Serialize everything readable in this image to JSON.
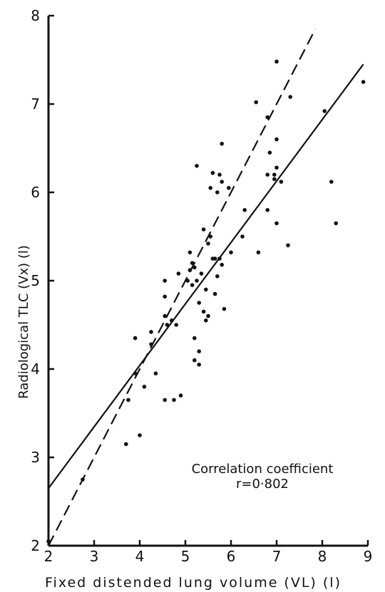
{
  "chart_data": {
    "type": "scatter",
    "xlabel": "Fixed distended lung volume (VL) (l)",
    "ylabel": "Radiological TLC (Vx) (l)",
    "xlim": [
      2,
      9
    ],
    "ylim": [
      2,
      8
    ],
    "x_ticks": [
      "2",
      "3",
      "4",
      "5",
      "6",
      "7",
      "8",
      "9"
    ],
    "y_ticks": [
      "2",
      "3",
      "4",
      "5",
      "6",
      "7",
      "8"
    ],
    "annotation": {
      "line1": "Correlation coefficient",
      "line2": "r=0·802"
    },
    "points": [
      [
        2.0,
        2.05
      ],
      [
        2.75,
        2.75
      ],
      [
        3.7,
        3.15
      ],
      [
        3.75,
        3.65
      ],
      [
        3.9,
        4.35
      ],
      [
        3.9,
        3.95
      ],
      [
        4.0,
        3.25
      ],
      [
        4.1,
        3.8
      ],
      [
        4.25,
        4.42
      ],
      [
        4.25,
        4.28
      ],
      [
        4.35,
        3.95
      ],
      [
        4.55,
        4.6
      ],
      [
        4.55,
        4.82
      ],
      [
        4.55,
        5.0
      ],
      [
        4.55,
        3.65
      ],
      [
        4.6,
        4.5
      ],
      [
        4.7,
        4.55
      ],
      [
        4.75,
        3.65
      ],
      [
        4.8,
        4.5
      ],
      [
        4.85,
        5.08
      ],
      [
        4.9,
        3.7
      ],
      [
        5.05,
        5.0
      ],
      [
        5.1,
        5.32
      ],
      [
        5.1,
        5.12
      ],
      [
        5.15,
        4.95
      ],
      [
        5.15,
        5.2
      ],
      [
        5.2,
        5.15
      ],
      [
        5.2,
        4.35
      ],
      [
        5.2,
        4.1
      ],
      [
        5.25,
        6.3
      ],
      [
        5.25,
        5.0
      ],
      [
        5.3,
        4.75
      ],
      [
        5.3,
        4.2
      ],
      [
        5.3,
        4.05
      ],
      [
        5.35,
        5.08
      ],
      [
        5.4,
        5.58
      ],
      [
        5.4,
        4.65
      ],
      [
        5.45,
        4.55
      ],
      [
        5.45,
        4.9
      ],
      [
        5.5,
        5.42
      ],
      [
        5.5,
        4.6
      ],
      [
        5.55,
        6.05
      ],
      [
        5.55,
        5.5
      ],
      [
        5.6,
        6.22
      ],
      [
        5.6,
        5.25
      ],
      [
        5.65,
        5.25
      ],
      [
        5.65,
        4.85
      ],
      [
        5.7,
        6.0
      ],
      [
        5.7,
        5.05
      ],
      [
        5.75,
        6.2
      ],
      [
        5.75,
        5.25
      ],
      [
        5.8,
        6.12
      ],
      [
        5.8,
        5.18
      ],
      [
        5.8,
        6.55
      ],
      [
        5.85,
        4.68
      ],
      [
        5.95,
        6.05
      ],
      [
        6.0,
        5.32
      ],
      [
        6.25,
        5.5
      ],
      [
        6.3,
        5.8
      ],
      [
        6.55,
        7.02
      ],
      [
        6.6,
        5.32
      ],
      [
        6.8,
        6.85
      ],
      [
        6.8,
        6.2
      ],
      [
        6.8,
        5.8
      ],
      [
        6.85,
        6.45
      ],
      [
        6.95,
        6.2
      ],
      [
        6.95,
        6.15
      ],
      [
        7.0,
        6.6
      ],
      [
        7.0,
        6.28
      ],
      [
        7.0,
        5.65
      ],
      [
        7.0,
        7.48
      ],
      [
        7.1,
        6.12
      ],
      [
        7.25,
        5.4
      ],
      [
        7.3,
        7.08
      ],
      [
        8.05,
        6.92
      ],
      [
        8.2,
        6.12
      ],
      [
        8.3,
        5.65
      ],
      [
        8.9,
        7.25
      ]
    ],
    "fit_lines": [
      {
        "style": "solid",
        "x": [
          2.0,
          8.9
        ],
        "y": [
          2.65,
          7.45
        ]
      },
      {
        "style": "dashed",
        "x": [
          2.0,
          7.85
        ],
        "y": [
          2.0,
          7.85
        ]
      }
    ]
  }
}
